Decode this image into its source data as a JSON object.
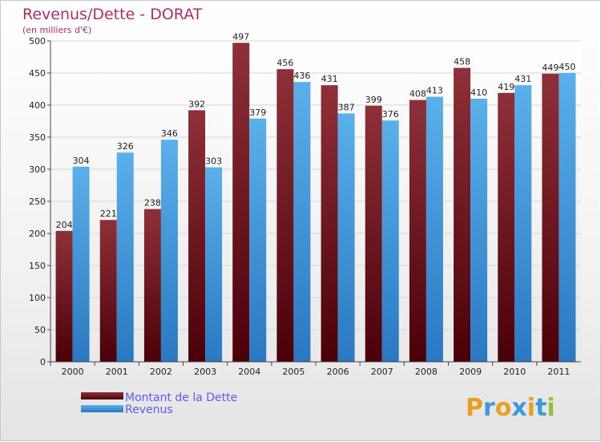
{
  "chart_data": {
    "type": "bar",
    "title": "Revenus/Dette - DORAT",
    "subtitle": "(en milliers d'€)",
    "categories": [
      "2000",
      "2001",
      "2002",
      "2003",
      "2004",
      "2005",
      "2006",
      "2007",
      "2008",
      "2009",
      "2010",
      "2011"
    ],
    "series": [
      {
        "name": "Montant de la Dette",
        "values": [
          204,
          221,
          238,
          392,
          497,
          456,
          431,
          399,
          408,
          458,
          419,
          449
        ],
        "color": "#7a1f2b"
      },
      {
        "name": "Revenus",
        "values": [
          304,
          326,
          346,
          303,
          379,
          436,
          387,
          376,
          413,
          410,
          431,
          450
        ],
        "color": "#4fa3e0"
      }
    ],
    "ylim": [
      0,
      500
    ],
    "yticks": [
      0,
      50,
      100,
      150,
      200,
      250,
      300,
      350,
      400,
      450,
      500
    ],
    "grid": true,
    "legend_position": "bottom-left"
  },
  "branding": {
    "logo_letters": [
      "P",
      "r",
      "o",
      "x",
      "i",
      "t",
      "i"
    ],
    "logo_colors": [
      "#e8a020",
      "#3a9ad9",
      "#e8a020",
      "#3a9ad9",
      "#e8a020",
      "#3a9ad9",
      "#8fc23a"
    ]
  }
}
